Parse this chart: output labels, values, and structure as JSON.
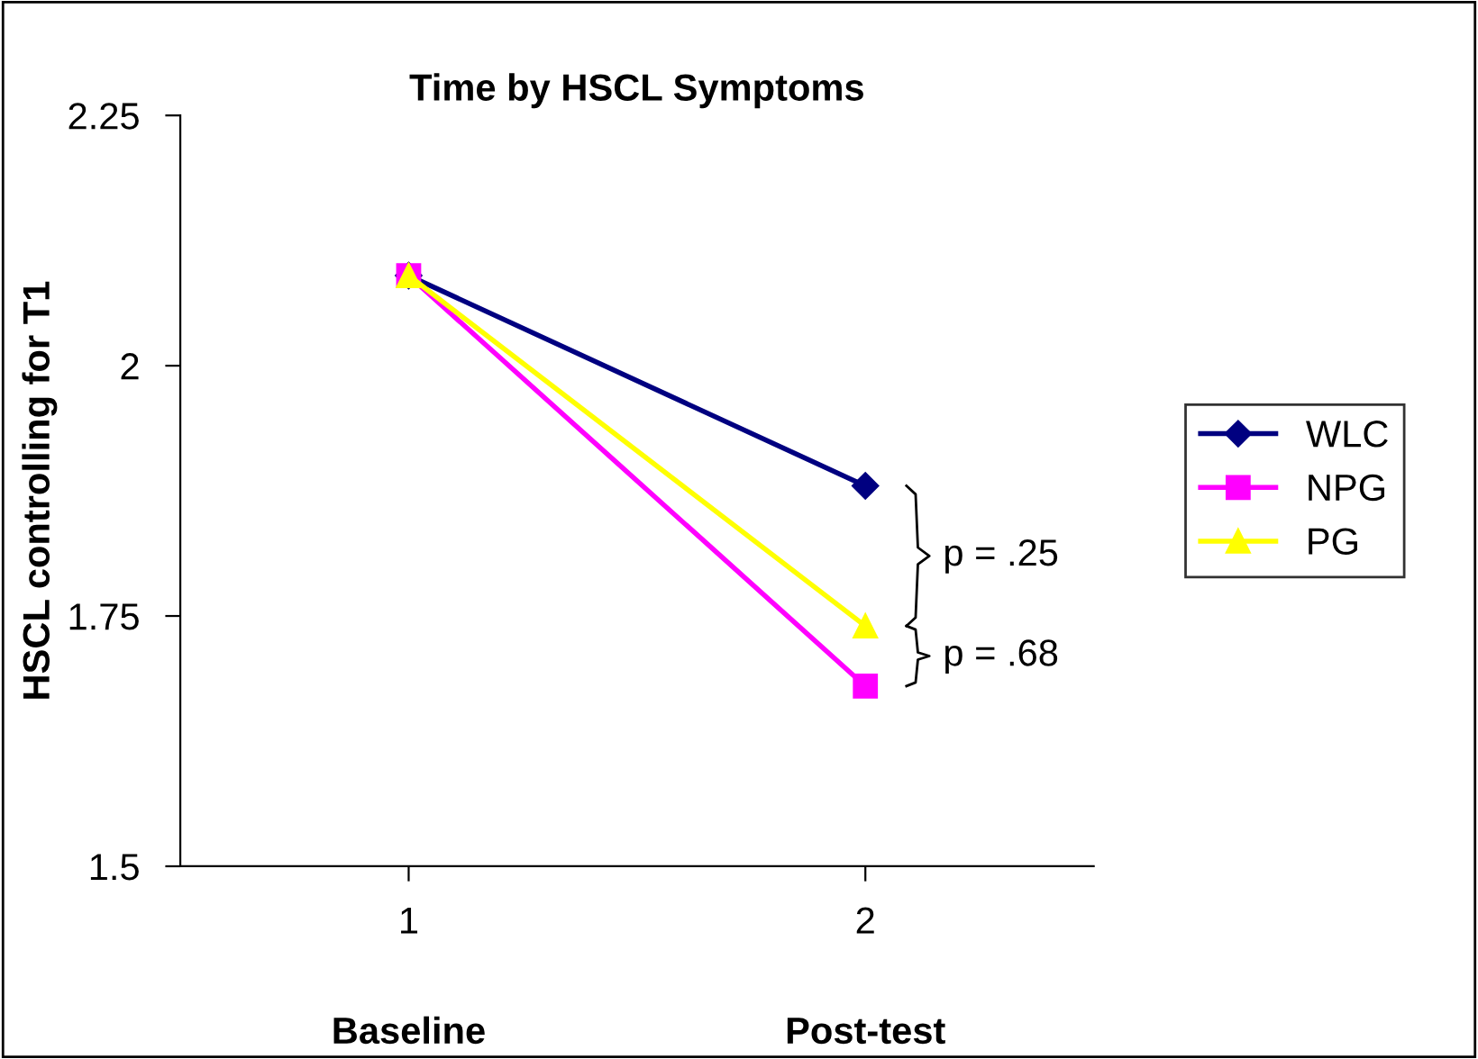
{
  "chart_data": {
    "type": "line",
    "title": "Time by HSCL Symptoms",
    "ylabel": "HSCL controlling for T1",
    "x": [
      1,
      2
    ],
    "xlim": [
      0.5,
      2.5
    ],
    "xticks": [
      1,
      2
    ],
    "ylim": [
      1.5,
      2.25
    ],
    "yticks": [
      1.5,
      1.75,
      2,
      2.25
    ],
    "series": [
      {
        "name": "WLC",
        "color": "#000080",
        "marker": "diamond",
        "values": [
          2.09,
          1.88
        ]
      },
      {
        "name": "NPG",
        "color": "#ff00ff",
        "marker": "square",
        "values": [
          2.09,
          1.68
        ]
      },
      {
        "name": "PG",
        "color": "#ffff00",
        "marker": "triangle",
        "values": [
          2.09,
          1.74
        ]
      }
    ],
    "annotations": [
      "Baseline",
      "Post-test",
      "p = .25",
      "p = .68"
    ],
    "grid": false,
    "legend": "right",
    "line_style": "solid"
  }
}
